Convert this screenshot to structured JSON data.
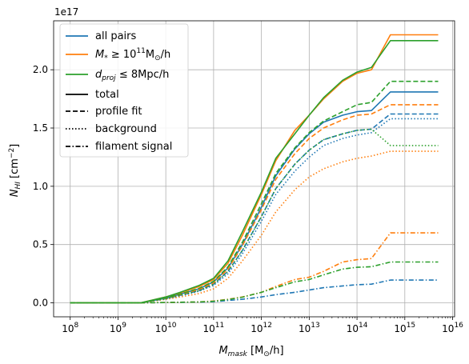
{
  "chart_data": {
    "type": "line",
    "xlabel_main": "M",
    "xlabel_sub": "mask",
    "xlabel_unit": "[M",
    "xlabel_unit_sub": "⊙",
    "xlabel_unit_end": "/h]",
    "ylabel_main": "N",
    "ylabel_sub": "HI",
    "ylabel_unit": "[cm",
    "ylabel_unit_sup": "−2",
    "ylabel_unit_end": "]",
    "offset_text": "1e17",
    "x_scale": "log",
    "xlim": [
      45000000.0,
      1.1e+16
    ],
    "ylim": [
      -0.12,
      2.42
    ],
    "xticks": [
      {
        "value": 100000000.0,
        "base": "10",
        "exp": "8"
      },
      {
        "value": 1000000000.0,
        "base": "10",
        "exp": "9"
      },
      {
        "value": 10000000000.0,
        "base": "10",
        "exp": "10"
      },
      {
        "value": 100000000000.0,
        "base": "10",
        "exp": "11"
      },
      {
        "value": 1000000000000.0,
        "base": "10",
        "exp": "12"
      },
      {
        "value": 10000000000000.0,
        "base": "10",
        "exp": "13"
      },
      {
        "value": 100000000000000.0,
        "base": "10",
        "exp": "14"
      },
      {
        "value": 1000000000000000.0,
        "base": "10",
        "exp": "15"
      },
      {
        "value": 1e+16,
        "base": "10",
        "exp": "16"
      }
    ],
    "yticks": [
      {
        "value": 0.0,
        "label": "0.0"
      },
      {
        "value": 0.5,
        "label": "0.5"
      },
      {
        "value": 1.0,
        "label": "1.0"
      },
      {
        "value": 1.5,
        "label": "1.5"
      },
      {
        "value": 2.0,
        "label": "2.0"
      }
    ],
    "grid": true,
    "legend_placement": "top-left",
    "x": [
      100000000.0,
      2000000000.0,
      3000000000.0,
      10000000000.0,
      20000000000.0,
      50000000000.0,
      100000000000.0,
      200000000000.0,
      400000000000.0,
      1000000000000.0,
      2000000000000.0,
      5000000000000.0,
      10000000000000.0,
      20000000000000.0,
      50000000000000.0,
      100000000000000.0,
      200000000000000.0,
      500000000000000.0,
      1000000000000000.0,
      5000000000000000.0
    ],
    "colors": {
      "all_pairs": "#1f77b4",
      "mstar": "#ff7f0e",
      "dproj": "#2ca02c",
      "style_key": "#000000"
    },
    "series": [
      {
        "group": "all_pairs",
        "style": "solid",
        "values": [
          0,
          0,
          0,
          0.04,
          0.075,
          0.12,
          0.18,
          0.3,
          0.5,
          0.82,
          1.09,
          1.32,
          1.45,
          1.55,
          1.61,
          1.64,
          1.65,
          1.81,
          1.81,
          1.81
        ]
      },
      {
        "group": "all_pairs",
        "style": "dashed",
        "values": [
          0,
          0,
          0,
          0.035,
          0.065,
          0.105,
          0.16,
          0.27,
          0.45,
          0.74,
          0.98,
          1.19,
          1.31,
          1.4,
          1.45,
          1.48,
          1.49,
          1.62,
          1.62,
          1.62
        ]
      },
      {
        "group": "all_pairs",
        "style": "dotted",
        "values": [
          0,
          0,
          0,
          0.033,
          0.06,
          0.1,
          0.15,
          0.25,
          0.42,
          0.7,
          0.93,
          1.13,
          1.25,
          1.35,
          1.41,
          1.44,
          1.46,
          1.58,
          1.58,
          1.58
        ]
      },
      {
        "group": "all_pairs",
        "style": "dashdot",
        "values": [
          0,
          0,
          0,
          0.002,
          0.004,
          0.006,
          0.01,
          0.02,
          0.03,
          0.05,
          0.07,
          0.09,
          0.11,
          0.13,
          0.145,
          0.155,
          0.16,
          0.195,
          0.195,
          0.195
        ]
      },
      {
        "group": "mstar",
        "style": "solid",
        "values": [
          0,
          0,
          0,
          0.05,
          0.085,
          0.14,
          0.2,
          0.34,
          0.58,
          0.93,
          1.22,
          1.48,
          1.61,
          1.75,
          1.9,
          1.97,
          2.0,
          2.3,
          2.3,
          2.3
        ]
      },
      {
        "group": "mstar",
        "style": "dashed",
        "values": [
          0,
          0,
          0,
          0.04,
          0.07,
          0.115,
          0.17,
          0.29,
          0.49,
          0.8,
          1.06,
          1.28,
          1.41,
          1.5,
          1.57,
          1.61,
          1.62,
          1.7,
          1.7,
          1.7
        ]
      },
      {
        "group": "mstar",
        "style": "dotted",
        "values": [
          0,
          0,
          0,
          0.03,
          0.05,
          0.08,
          0.12,
          0.21,
          0.36,
          0.58,
          0.78,
          0.97,
          1.08,
          1.15,
          1.21,
          1.24,
          1.26,
          1.3,
          1.3,
          1.3
        ]
      },
      {
        "group": "mstar",
        "style": "dashdot",
        "values": [
          0,
          0,
          0,
          0.003,
          0.005,
          0.008,
          0.015,
          0.03,
          0.05,
          0.09,
          0.14,
          0.2,
          0.22,
          0.27,
          0.35,
          0.37,
          0.38,
          0.6,
          0.6,
          0.6
        ]
      },
      {
        "group": "dproj",
        "style": "solid",
        "values": [
          0,
          0,
          0,
          0.05,
          0.09,
          0.15,
          0.21,
          0.36,
          0.61,
          0.95,
          1.24,
          1.45,
          1.61,
          1.76,
          1.91,
          1.98,
          2.02,
          2.25,
          2.25,
          2.25
        ]
      },
      {
        "group": "dproj",
        "style": "dashed",
        "values": [
          0,
          0,
          0,
          0.042,
          0.075,
          0.125,
          0.185,
          0.31,
          0.52,
          0.85,
          1.11,
          1.33,
          1.46,
          1.56,
          1.64,
          1.7,
          1.72,
          1.9,
          1.9,
          1.9
        ]
      },
      {
        "group": "dproj",
        "style": "dotted",
        "values": [
          0,
          0,
          0,
          0.035,
          0.065,
          0.105,
          0.16,
          0.27,
          0.45,
          0.74,
          0.98,
          1.19,
          1.31,
          1.4,
          1.45,
          1.48,
          1.49,
          1.35,
          1.35,
          1.35
        ]
      },
      {
        "group": "dproj",
        "style": "dashdot",
        "values": [
          0,
          0,
          0,
          0.003,
          0.005,
          0.008,
          0.013,
          0.028,
          0.048,
          0.09,
          0.13,
          0.18,
          0.2,
          0.24,
          0.29,
          0.305,
          0.31,
          0.35,
          0.35,
          0.35
        ]
      }
    ],
    "legend": [
      {
        "kind": "color",
        "group": "all_pairs",
        "label": "all pairs"
      },
      {
        "kind": "color",
        "group": "mstar",
        "label_pre": "M",
        "label_sub": "*",
        "label_mid": " ≥ 10",
        "label_sup": "11",
        "label_unit": "M",
        "label_unit_sub": "⊙",
        "label_end": "/h"
      },
      {
        "kind": "color",
        "group": "dproj",
        "label_pre": "d",
        "label_sub": "proj",
        "label_mid": " ≤ 8Mpc/h"
      },
      {
        "kind": "style",
        "style": "solid",
        "label": "total"
      },
      {
        "kind": "style",
        "style": "dashed",
        "label": "profile fit"
      },
      {
        "kind": "style",
        "style": "dotted",
        "label": "background"
      },
      {
        "kind": "style",
        "style": "dashdot",
        "label": "filament signal"
      }
    ]
  }
}
